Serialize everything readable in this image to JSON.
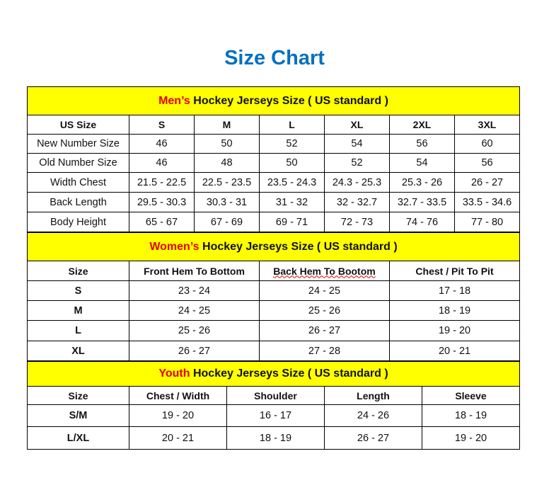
{
  "title": "Size Chart",
  "colors": {
    "title": "#0070c0",
    "section_bg": "#ffff00",
    "highlight": "#e00000"
  },
  "men": {
    "section_highlight": "Men’s",
    "section_rest": " Hockey Jerseys Size ( US standard )",
    "headers": [
      "US Size",
      "S",
      "M",
      "L",
      "XL",
      "2XL",
      "3XL"
    ],
    "rows": [
      [
        "New Number Size",
        "46",
        "50",
        "52",
        "54",
        "56",
        "60"
      ],
      [
        "Old Number Size",
        "46",
        "48",
        "50",
        "52",
        "54",
        "56"
      ],
      [
        "Width Chest",
        "21.5 - 22.5",
        "22.5 - 23.5",
        "23.5 - 24.3",
        "24.3 - 25.3",
        "25.3 - 26",
        "26 - 27"
      ],
      [
        "Back Length",
        "29.5 - 30.3",
        "30.3 - 31",
        "31 - 32",
        "32 - 32.7",
        "32.7 - 33.5",
        "33.5 - 34.6"
      ],
      [
        "Body Height",
        "65 - 67",
        "67 - 69",
        "69 - 71",
        "72 - 73",
        "74 - 76",
        "77 - 80"
      ]
    ]
  },
  "women": {
    "section_highlight": "Women’s",
    "section_rest": " Hockey Jerseys Size ( US standard )",
    "headers": [
      "Size",
      "Front Hem To Bottom",
      "Back Hem To Bootom",
      "Chest / Pit To Pit"
    ],
    "rows": [
      [
        "S",
        "23 - 24",
        "24 - 25",
        "17 - 18"
      ],
      [
        "M",
        "24 - 25",
        "25 - 26",
        "18 - 19"
      ],
      [
        "L",
        "25 - 26",
        "26 - 27",
        "19 - 20"
      ],
      [
        "XL",
        "26 - 27",
        "27 - 28",
        "20 - 21"
      ]
    ]
  },
  "youth": {
    "section_highlight": "Youth",
    "section_rest": " Hockey Jerseys Size ( US standard )",
    "headers": [
      "Size",
      "Chest / Width",
      "Shoulder",
      "Length",
      "Sleeve"
    ],
    "rows": [
      [
        "S/M",
        "19 - 20",
        "16 - 17",
        "24 - 26",
        "18 - 19"
      ],
      [
        "L/XL",
        "20 - 21",
        "18 - 19",
        "26 - 27",
        "19 - 20"
      ]
    ]
  }
}
